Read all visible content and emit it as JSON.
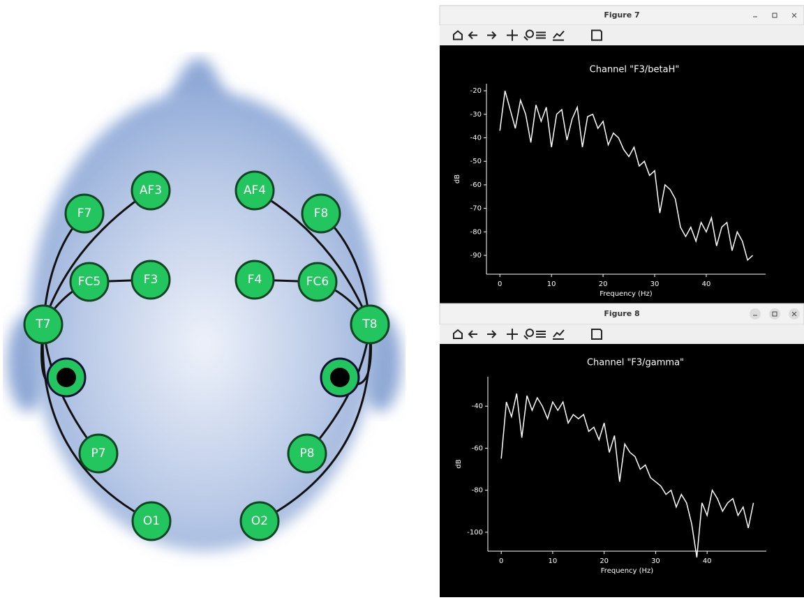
{
  "diagram": {
    "electrodes": [
      "AF3",
      "F7",
      "FC5",
      "F3",
      "T7",
      "P7",
      "O1",
      "AF4",
      "F8",
      "F4",
      "FC6",
      "T8",
      "P8",
      "O2"
    ]
  },
  "windows": [
    {
      "title": "Figure 7"
    },
    {
      "title": "Figure 8"
    }
  ],
  "chart_data": [
    {
      "type": "line",
      "title": "Channel \"F3/betaH\"",
      "x_label": "Frequency (Hz)",
      "y_label": "dB",
      "x": [
        0,
        1,
        2,
        3,
        4,
        5,
        6,
        7,
        8,
        9,
        10,
        11,
        12,
        13,
        14,
        15,
        16,
        17,
        18,
        19,
        20,
        21,
        22,
        23,
        24,
        25,
        26,
        27,
        28,
        29,
        30,
        31,
        32,
        33,
        34,
        35,
        36,
        37,
        38,
        39,
        40,
        41,
        42,
        43,
        44,
        45,
        46,
        47,
        48,
        49
      ],
      "series": [
        {
          "color": "#ffffff",
          "values": [
            -37,
            -20,
            -28,
            -36,
            -24,
            -30,
            -42,
            -26,
            -33,
            -27,
            -44,
            -30,
            -28,
            -41,
            -32,
            -27,
            -44,
            -31,
            -30,
            -36,
            -33,
            -43,
            -38,
            -40,
            -45,
            -48,
            -44,
            -52,
            -50,
            -56,
            -54,
            -72,
            -60,
            -62,
            -66,
            -78,
            -82,
            -78,
            -84,
            -76,
            -80,
            -74,
            -86,
            -78,
            -76,
            -88,
            -80,
            -84,
            -92,
            -90
          ]
        }
      ],
      "xlim": [
        -2.6,
        51.5
      ],
      "ylim": [
        -98,
        -17
      ],
      "xticks": [
        0,
        10,
        20,
        30,
        40
      ],
      "yticks": [
        -20,
        -30,
        -40,
        -50,
        -60,
        -70,
        -80,
        -90
      ]
    },
    {
      "type": "line",
      "title": "Channel \"F3/gamma\"",
      "x_label": "Frequency (Hz)",
      "y_label": "dB",
      "x": [
        0,
        1,
        2,
        3,
        4,
        5,
        6,
        7,
        8,
        9,
        10,
        11,
        12,
        13,
        14,
        15,
        16,
        17,
        18,
        19,
        20,
        21,
        22,
        23,
        24,
        25,
        26,
        27,
        28,
        29,
        30,
        31,
        32,
        33,
        34,
        35,
        36,
        37,
        38,
        39,
        40,
        41,
        42,
        43,
        44,
        45,
        46,
        47,
        48,
        49
      ],
      "series": [
        {
          "color": "#ffffff",
          "values": [
            -65,
            -38,
            -45,
            -34,
            -55,
            -35,
            -42,
            -36,
            -40,
            -46,
            -38,
            -42,
            -38,
            -48,
            -44,
            -46,
            -44,
            -52,
            -50,
            -56,
            -48,
            -62,
            -54,
            -76,
            -58,
            -62,
            -64,
            -70,
            -68,
            -74,
            -76,
            -78,
            -82,
            -80,
            -88,
            -82,
            -86,
            -96,
            -112,
            -86,
            -92,
            -80,
            -84,
            -90,
            -86,
            -84,
            -92,
            -88,
            -98,
            -86
          ]
        }
      ],
      "xlim": [
        -2.6,
        51.5
      ],
      "ylim": [
        -109,
        -26
      ],
      "xticks": [
        0,
        10,
        20,
        30,
        40
      ],
      "yticks": [
        -40,
        -60,
        -80,
        -100
      ]
    }
  ]
}
